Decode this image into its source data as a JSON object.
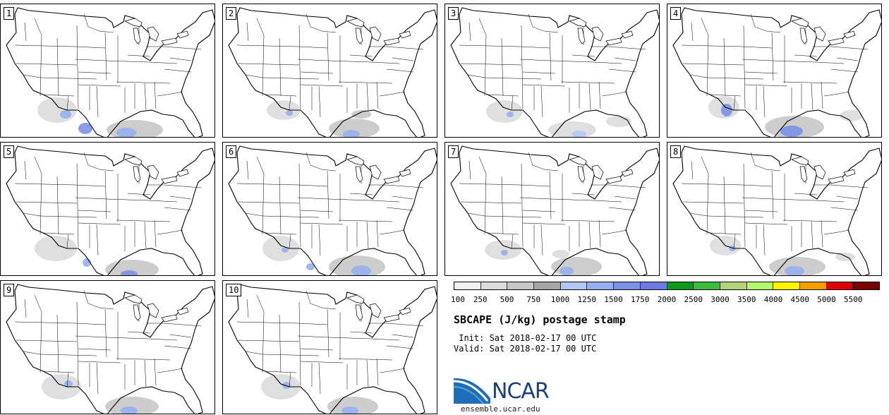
{
  "panels": [
    {
      "label": "1",
      "col": 0,
      "row": 0
    },
    {
      "label": "2",
      "col": 1,
      "row": 0
    },
    {
      "label": "3",
      "col": 2,
      "row": 0
    },
    {
      "label": "4",
      "col": 3,
      "row": 0
    },
    {
      "label": "5",
      "col": 0,
      "row": 1
    },
    {
      "label": "6",
      "col": 1,
      "row": 1
    },
    {
      "label": "7",
      "col": 2,
      "row": 1
    },
    {
      "label": "8",
      "col": 3,
      "row": 1
    },
    {
      "label": "9",
      "col": 0,
      "row": 2
    },
    {
      "label": "10",
      "col": 1,
      "row": 2
    }
  ],
  "colorbar": {
    "colors": [
      "#f0f0f0",
      "#dcdcdc",
      "#c8c8c8",
      "#a5a5a5",
      "#b4c8f5",
      "#96afee",
      "#7b91e6",
      "#6e78e0",
      "#0f9a1e",
      "#3cbc3c",
      "#b4d27a",
      "#b4f86c",
      "#fff400",
      "#f5a000",
      "#e00000",
      "#780000"
    ],
    "labels": [
      "100",
      "250",
      "500",
      "750",
      "1000",
      "1250",
      "1500",
      "1750",
      "2000",
      "2500",
      "3000",
      "3500",
      "4000",
      "4500",
      "5000",
      "5500"
    ]
  },
  "title": "SBCAPE (J/kg) postage stamp",
  "init": " Init: Sat 2018-02-17 00 UTC",
  "valid": "Valid: Sat 2018-02-17 00 UTC",
  "logo_text": "NCAR",
  "site": "ensemble.ucar.edu"
}
